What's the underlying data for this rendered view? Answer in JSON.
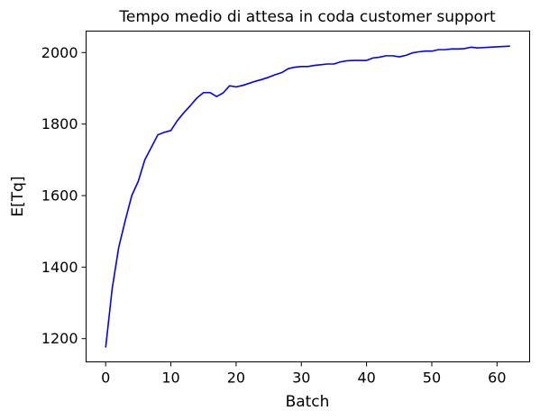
{
  "chart_data": {
    "type": "line",
    "title": "Tempo medio di attesa in coda customer support",
    "xlabel": "Batch",
    "ylabel": "E[Tq]",
    "xlim": [
      -3,
      65
    ],
    "ylim": [
      1135,
      2060
    ],
    "xticks": [
      0,
      10,
      20,
      30,
      40,
      50,
      60
    ],
    "yticks": [
      1200,
      1400,
      1600,
      1800,
      2000
    ],
    "grid": false,
    "series": [
      {
        "color": "#0000ff",
        "x": [
          0,
          1,
          2,
          3,
          4,
          5,
          6,
          7,
          8,
          9,
          10,
          11,
          12,
          13,
          14,
          15,
          16,
          17,
          18,
          19,
          20,
          21,
          22,
          23,
          24,
          25,
          26,
          27,
          28,
          29,
          30,
          31,
          32,
          33,
          34,
          35,
          36,
          37,
          38,
          39,
          40,
          41,
          42,
          43,
          44,
          45,
          46,
          47,
          48,
          49,
          50,
          51,
          52,
          53,
          54,
          55,
          56,
          57,
          58,
          59,
          60,
          61,
          62
        ],
        "y": [
          1175,
          1340,
          1455,
          1530,
          1600,
          1640,
          1700,
          1735,
          1770,
          1777,
          1782,
          1810,
          1832,
          1852,
          1873,
          1888,
          1888,
          1877,
          1887,
          1907,
          1904,
          1908,
          1914,
          1920,
          1925,
          1931,
          1938,
          1944,
          1955,
          1959,
          1961,
          1961,
          1964,
          1966,
          1968,
          1968,
          1974,
          1977,
          1978,
          1978,
          1978,
          1985,
          1987,
          1991,
          1991,
          1988,
          1992,
          1999,
          2002,
          2004,
          2004,
          2008,
          2008,
          2010,
          2010,
          2011,
          2015,
          2013,
          2014,
          2015,
          2016,
          2017,
          2018
        ]
      }
    ]
  }
}
